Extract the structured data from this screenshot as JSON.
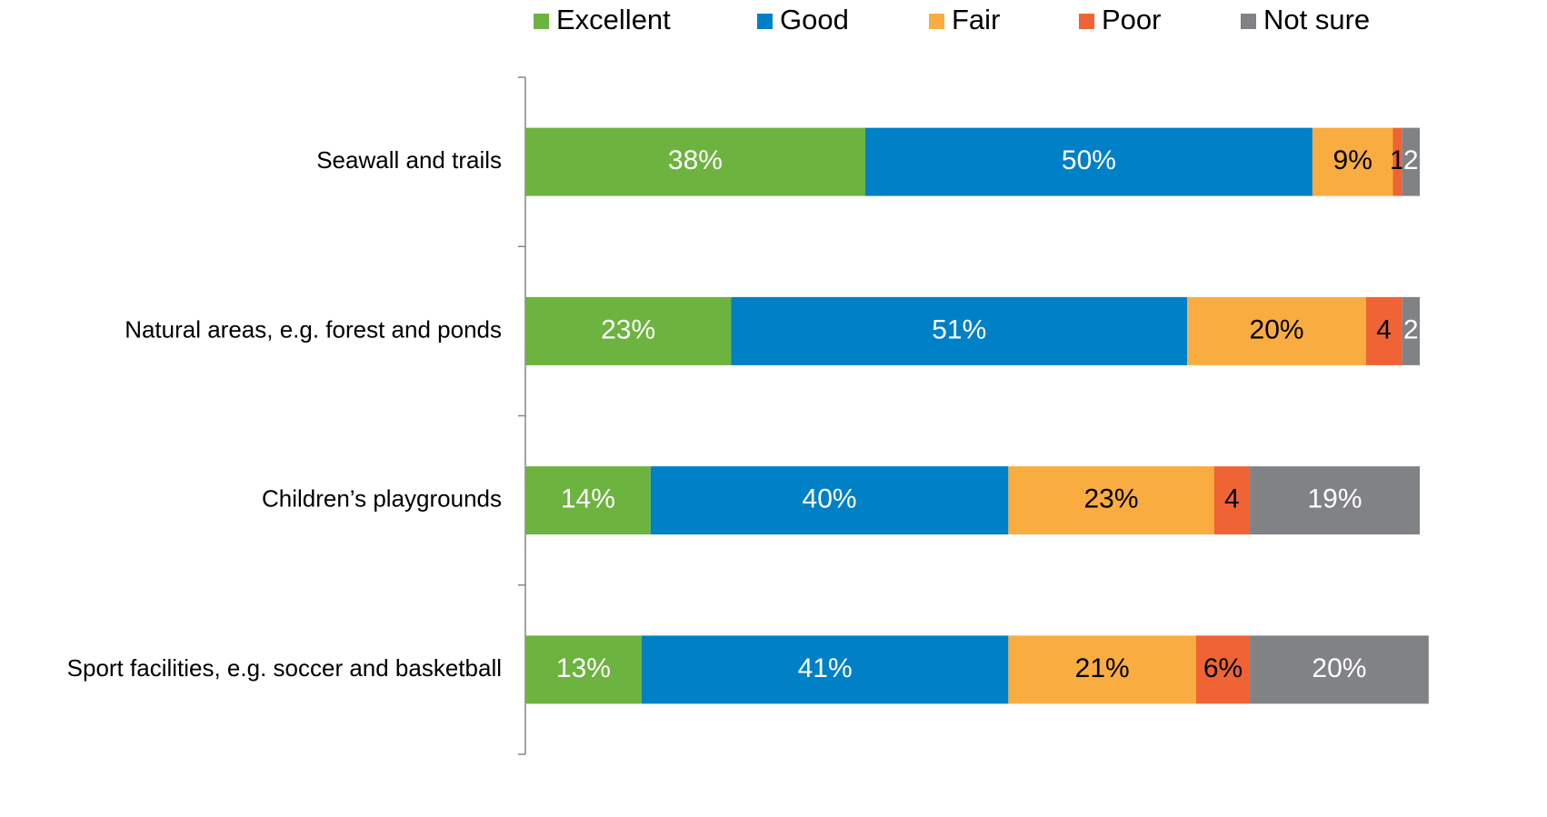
{
  "chart_data": {
    "type": "stacked_bar_horizontal",
    "categories": [
      "Seawall and trails",
      "Natural areas, e.g. forest and ponds",
      "Children’s playgrounds",
      "Sport facilities, e.g. soccer and basketball"
    ],
    "series": [
      {
        "name": "Excellent",
        "color": "#6db33f",
        "values": [
          38,
          23,
          14,
          13
        ],
        "value_labels": [
          "38%",
          "23%",
          "14%",
          "13%"
        ]
      },
      {
        "name": "Good",
        "color": "#0080c6",
        "values": [
          50,
          51,
          40,
          41
        ],
        "value_labels": [
          "50%",
          "51%",
          "40%",
          "41%"
        ]
      },
      {
        "name": "Fair",
        "color": "#f9ac40",
        "values": [
          9,
          20,
          23,
          21
        ],
        "value_labels": [
          "9%",
          "20%",
          "23%",
          "21%"
        ]
      },
      {
        "name": "Poor",
        "color": "#ef6334",
        "values": [
          1,
          4,
          4,
          6
        ],
        "value_labels": [
          "1",
          "4",
          "4",
          "6%"
        ]
      },
      {
        "name": "Not sure",
        "color": "#808285",
        "values": [
          2,
          2,
          19,
          20
        ],
        "value_labels": [
          "2",
          "2",
          "19%",
          "20%"
        ]
      }
    ],
    "xlim": [
      0,
      100
    ],
    "legend": "top"
  }
}
